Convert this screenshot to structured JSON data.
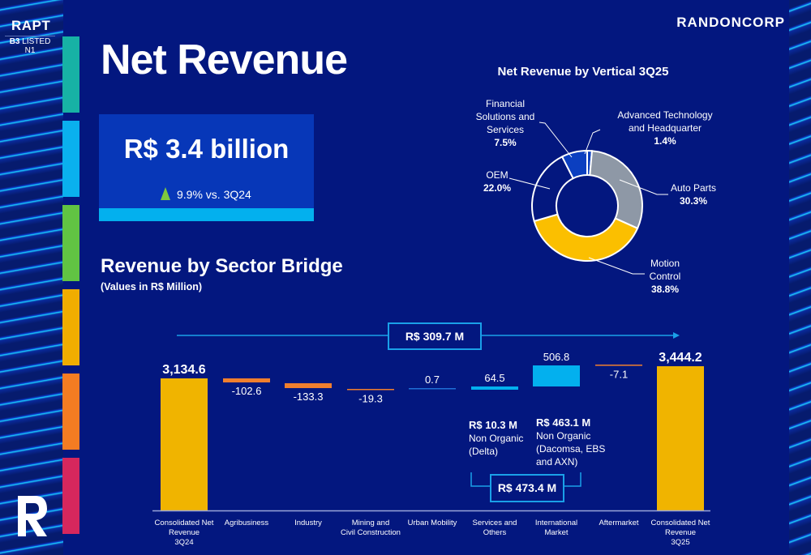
{
  "branding": {
    "ticker": "RAPT",
    "listing_prefix": "B3",
    "listing_suffix": " LISTED N1",
    "company": "RANDONCORP",
    "logo_icon": "r-logo-icon"
  },
  "side_colors": [
    "#17b2a5",
    "#0ab0ee",
    "#61c443",
    "#f0ad00",
    "#f47c22",
    "#d6275d"
  ],
  "page_title": "Net Revenue",
  "kpi": {
    "value": "R$ 3.4 billion",
    "change_icon": "triangle-up-icon",
    "change": "9.9% vs. 3Q24",
    "accent": "#03b0ee"
  },
  "bridge_header": {
    "title": "Revenue by Sector Bridge",
    "subtitle": "(Values in R$ Million)"
  },
  "pie_header": {
    "title": "Net Revenue by Vertical 3Q25"
  },
  "annotations": {
    "overall_delta": "R$ 309.7 M",
    "nonorganic_total": "R$ 473.4 M",
    "services_note": {
      "amount": "R$ 10.3 M",
      "line1": "Non Organic",
      "line2": "(Delta)"
    },
    "international_note": {
      "amount": "R$ 463.1 M",
      "line1": "Non Organic",
      "line2": "(Dacomsa, EBS",
      "line3": "and AXN)"
    }
  },
  "chart_data": [
    {
      "type": "pie",
      "title": "Net Revenue by Vertical 3Q25",
      "donut": true,
      "slices": [
        {
          "name": "Advanced Technology and Headquarter",
          "label_lines": [
            "Advanced Technology",
            "and Headquarter"
          ],
          "value": 1.4,
          "value_label": "1.4%",
          "color": "#0b3fc0"
        },
        {
          "name": "Auto Parts",
          "label_lines": [
            "Auto Parts"
          ],
          "value": 30.3,
          "value_label": "30.3%",
          "color": "#8e98a6"
        },
        {
          "name": "Motion Control",
          "label_lines": [
            "Motion",
            "Control"
          ],
          "value": 38.8,
          "value_label": "38.8%",
          "color": "#fbbf00"
        },
        {
          "name": "OEM",
          "label_lines": [
            "OEM"
          ],
          "value": 22.0,
          "value_label": "22.0%",
          "color": "#03177f"
        },
        {
          "name": "Financial Solutions and Services",
          "label_lines": [
            "Financial",
            "Solutions and",
            "Services"
          ],
          "value": 7.5,
          "value_label": "7.5%",
          "color": "#0b3fc0"
        }
      ]
    },
    {
      "type": "bar",
      "subtype": "waterfall",
      "title": "Revenue by Sector Bridge",
      "subtitle": "(Values in R$ Million)",
      "categories": [
        "Consolidated Net Revenue 3Q24",
        "Agribusiness",
        "Industry",
        "Mining and Civil Construction",
        "Urban Mobility",
        "Services and Others",
        "International Market",
        "Aftermarket",
        "Consolidated Net Revenue 3Q25"
      ],
      "category_label_lines": [
        [
          "Consolidated Net",
          "Revenue",
          "3Q24"
        ],
        [
          "Agribusiness"
        ],
        [
          "Industry"
        ],
        [
          "Mining and",
          "Civil Construction"
        ],
        [
          "Urban Mobility"
        ],
        [
          "Services and",
          "Others"
        ],
        [
          "International",
          "Market"
        ],
        [
          "Aftermarket"
        ],
        [
          "Consolidated Net",
          "Revenue",
          "3Q25"
        ]
      ],
      "values": [
        3134.6,
        -102.6,
        -133.3,
        -19.3,
        0.7,
        64.5,
        506.8,
        -7.1,
        3444.2
      ],
      "value_labels": [
        "3,134.6",
        "-102.6",
        "-133.3",
        "-19.3",
        "0.7",
        "64.5",
        "506.8",
        "-7.1",
        "3,444.2"
      ],
      "kinds": [
        "total",
        "delta",
        "delta",
        "delta",
        "delta",
        "delta",
        "delta",
        "delta",
        "total"
      ],
      "colors": {
        "total": "#f0b400",
        "negative": "#f07f2e",
        "positive_small": "#1f6fd6",
        "positive": "#03b0ee"
      },
      "ylabel": "R$ Million",
      "axis_visible": false,
      "ylim": [
        0,
        3700
      ]
    }
  ]
}
